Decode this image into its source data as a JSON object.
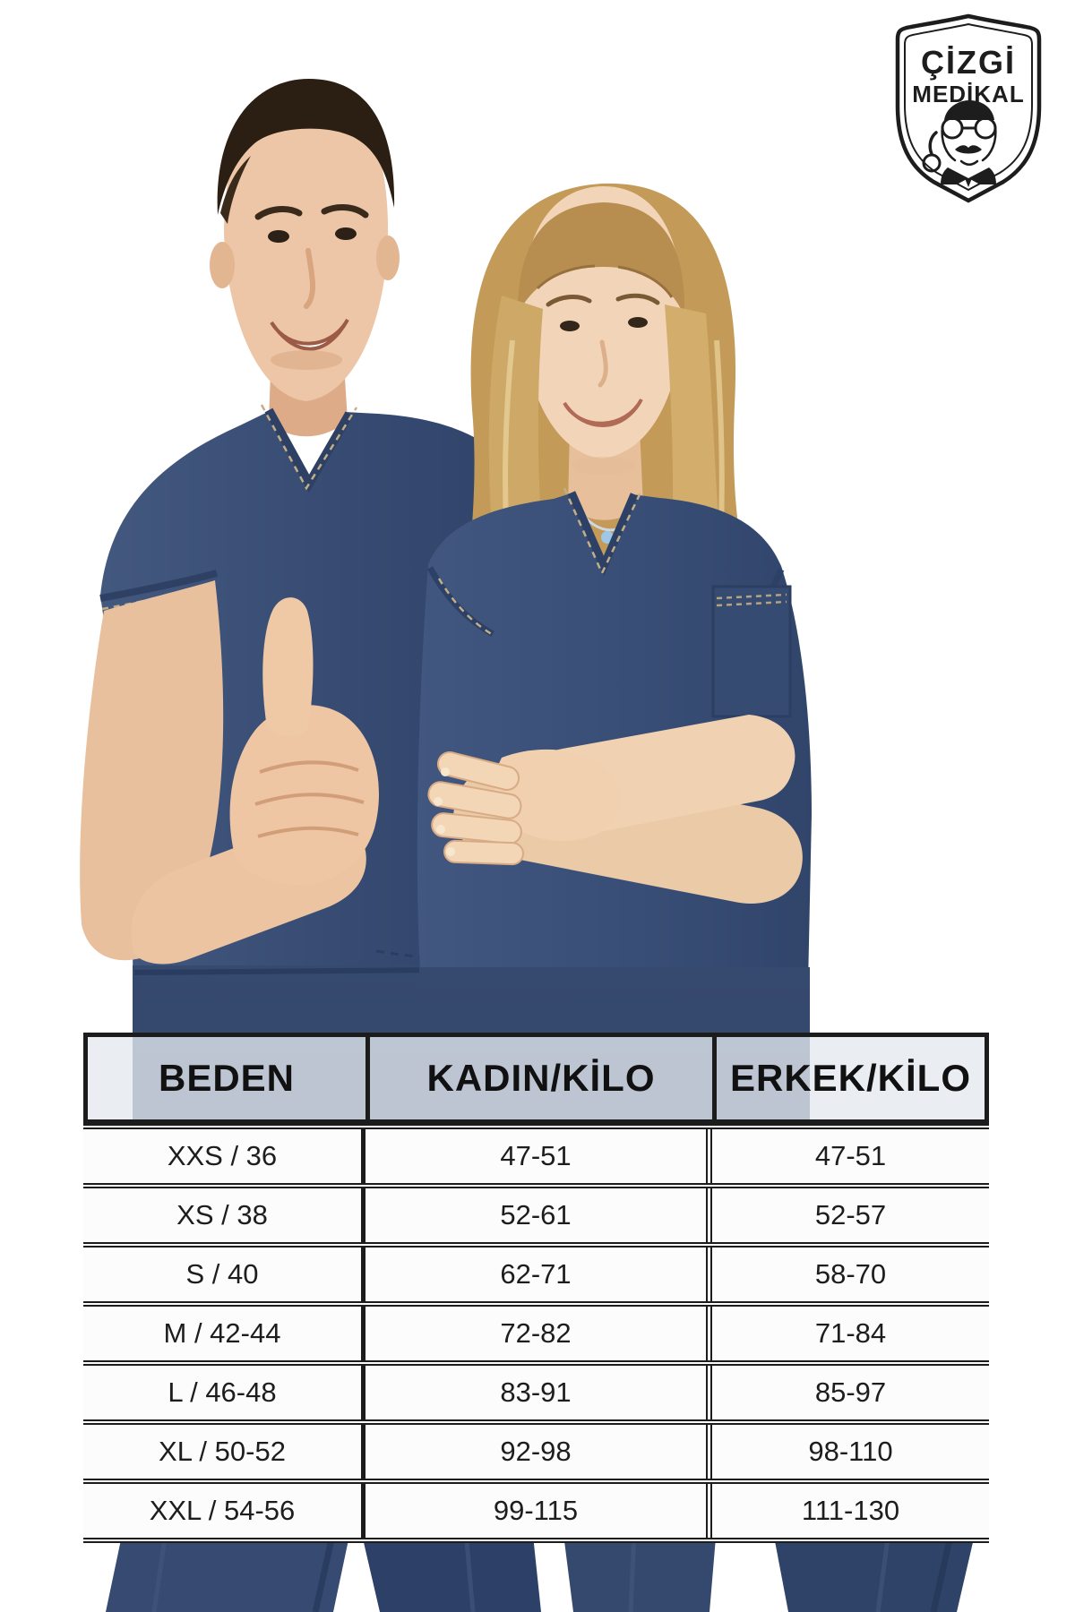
{
  "logo": {
    "line1": "ÇİZGİ",
    "line2": "MEDİKAL",
    "icon": "doctor-thumbs-up-shield"
  },
  "size_chart": {
    "columns": [
      "BEDEN",
      "KADIN/KİLO",
      "ERKEK/KİLO"
    ],
    "rows": [
      [
        "XXS / 36",
        "47-51",
        "47-51"
      ],
      [
        "XS / 38",
        "52-61",
        "52-57"
      ],
      [
        "S / 40",
        "62-71",
        "58-70"
      ],
      [
        "M / 42-44",
        "72-82",
        "71-84"
      ],
      [
        "L / 46-48",
        "83-91",
        "85-97"
      ],
      [
        "XL / 50-52",
        "92-98",
        "98-110"
      ],
      [
        "XXL / 54-56",
        "99-115",
        "111-130"
      ]
    ]
  },
  "photo": {
    "description": "Male and female models wearing indigo denim V-neck medical scrub suits; man giving a thumbs up, woman with arms crossed"
  },
  "colors": {
    "denim": "#3c5278",
    "denim_dark": "#2e4266",
    "pants": "#32466e",
    "stitch": "#c2ae87",
    "table_border": "#1c1c1c",
    "header_bg": "rgba(228,233,240,0.78)"
  }
}
